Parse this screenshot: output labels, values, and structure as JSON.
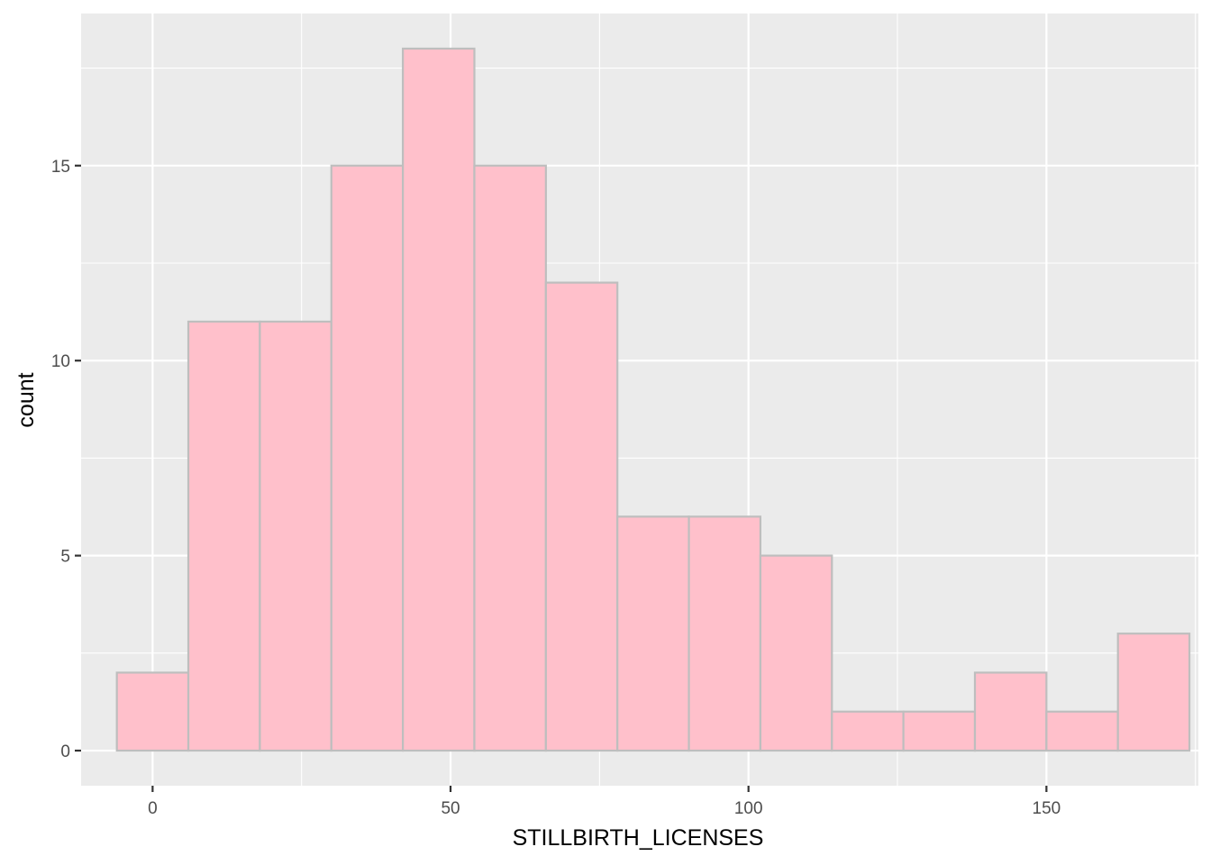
{
  "chart_data": {
    "type": "histogram",
    "title": "",
    "xlabel": "STILLBIRTH_LICENSES",
    "ylabel": "count",
    "xlim": [
      -12,
      175.5
    ],
    "ylim": [
      -0.9,
      18.9
    ],
    "x_ticks": [
      0,
      50,
      100,
      150
    ],
    "x_minor_ticks": [
      25,
      75,
      125,
      175
    ],
    "y_ticks": [
      0,
      5,
      10,
      15
    ],
    "y_minor_ticks": [
      2.5,
      7.5,
      12.5,
      17.5
    ],
    "grid": true,
    "bin_width": 12,
    "bins": [
      {
        "x0": -6,
        "x1": 6,
        "count": 2
      },
      {
        "x0": 6,
        "x1": 18,
        "count": 11
      },
      {
        "x0": 18,
        "x1": 30,
        "count": 11
      },
      {
        "x0": 30,
        "x1": 42,
        "count": 15
      },
      {
        "x0": 42,
        "x1": 54,
        "count": 18
      },
      {
        "x0": 54,
        "x1": 66,
        "count": 15
      },
      {
        "x0": 66,
        "x1": 78,
        "count": 12
      },
      {
        "x0": 78,
        "x1": 90,
        "count": 6
      },
      {
        "x0": 90,
        "x1": 102,
        "count": 6
      },
      {
        "x0": 102,
        "x1": 114,
        "count": 5
      },
      {
        "x0": 114,
        "x1": 126,
        "count": 1
      },
      {
        "x0": 126,
        "x1": 138,
        "count": 1
      },
      {
        "x0": 138,
        "x1": 150,
        "count": 2
      },
      {
        "x0": 150,
        "x1": 162,
        "count": 1
      },
      {
        "x0": 162,
        "x1": 174,
        "count": 3
      }
    ],
    "colors": {
      "panel": "#EBEBEB",
      "grid": "#FFFFFF",
      "bar_fill": "#FFC0CB",
      "bar_stroke": "#BEBEBE",
      "tick": "#333333"
    }
  }
}
